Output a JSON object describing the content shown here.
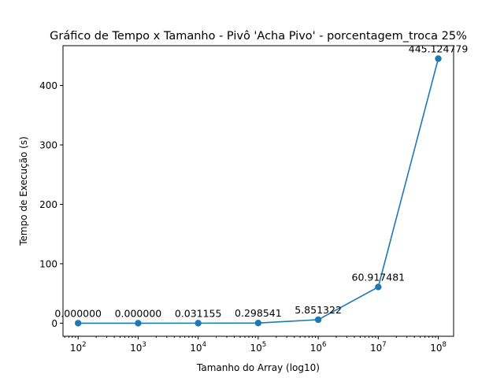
{
  "chart_data": {
    "type": "line",
    "title": "Gráfico de Tempo x Tamanho - Pivô 'Acha Pivo' - porcentagem_troca 25%",
    "xlabel": "Tamanho do Array (log10)",
    "ylabel": "Tempo de Execução (s)",
    "xscale": "log",
    "x_tick_base": "10",
    "x_tick_exponents": [
      "2",
      "3",
      "4",
      "5",
      "6",
      "7",
      "8"
    ],
    "xlim": [
      56,
      180000000
    ],
    "ylim": [
      -22,
      467
    ],
    "y_ticks": [
      0,
      100,
      200,
      300,
      400
    ],
    "grid": false,
    "color": "#1f77b4",
    "series": [
      {
        "x": [
          100,
          1000,
          10000,
          100000,
          1000000,
          10000000,
          100000000
        ],
        "values": [
          0.0,
          0.0,
          0.031155,
          0.298541,
          5.851322,
          60.917481,
          445.124779
        ],
        "labels": [
          "0.000000",
          "0.000000",
          "0.031155",
          "0.298541",
          "5.851322",
          "60.917481",
          "445.124779"
        ]
      }
    ]
  }
}
